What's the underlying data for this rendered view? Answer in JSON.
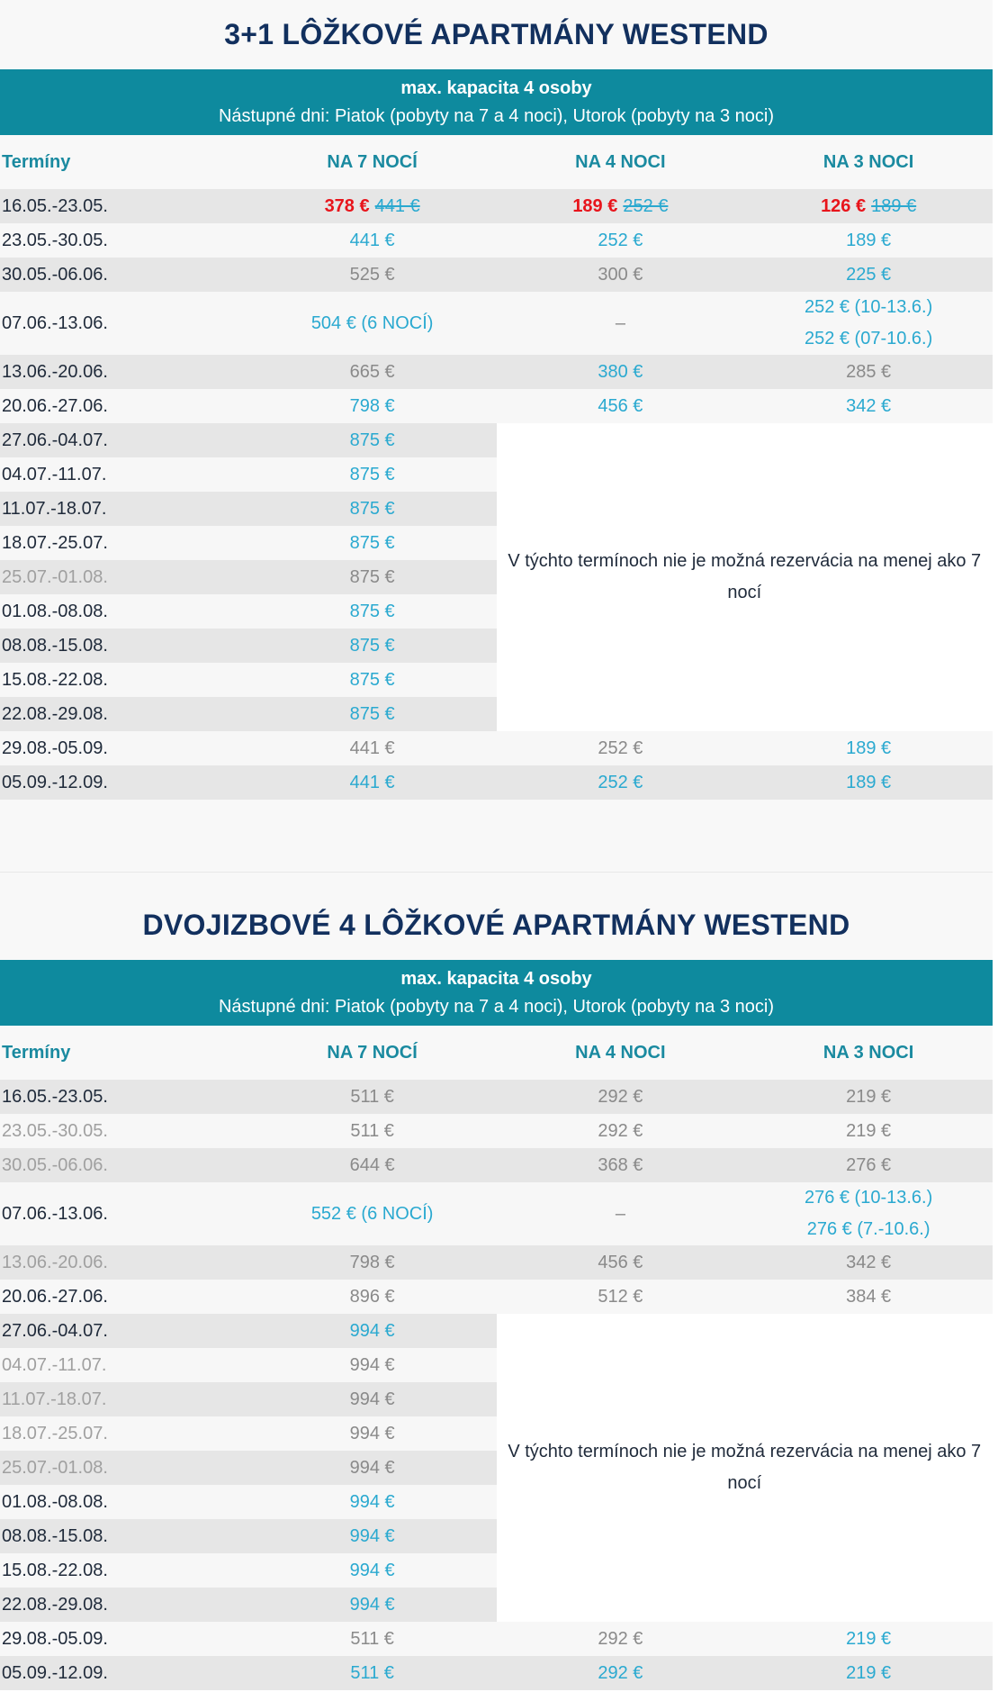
{
  "sections": [
    {
      "title": "3+1 LÔŽKOVÉ APARTMÁNY WESTEND",
      "capacity": "max. kapacita 4 osoby",
      "arrival": "Nástupné dni: Piatok (pobyty na 7 a 4 noci), Utorok (pobyty na 3 noci)",
      "columns": [
        "Termíny",
        "NA 7 NOCÍ",
        "NA 4 NOCI",
        "NA 3 NOCI"
      ],
      "note": "V týchto termínoch nie je možná rezervácia na menej ako 7 nocí",
      "rows": [
        {
          "date": "16.05.-23.05.",
          "date_color": "#1f2a3a",
          "cells": [
            {
              "text": "378 €",
              "old": "441 €",
              "color": "#e8141b",
              "old_color": "#2aa9d0"
            },
            {
              "text": "189 €",
              "old": "252 €",
              "color": "#e8141b",
              "old_color": "#2aa9d0"
            },
            {
              "text": "126 €",
              "old": "189 €",
              "color": "#e8141b",
              "old_color": "#2aa9d0"
            }
          ]
        },
        {
          "date": "23.05.-30.05.",
          "date_color": "#1f2a3a",
          "cells": [
            {
              "text": "441 €",
              "color": "#2aa9d0"
            },
            {
              "text": "252 €",
              "color": "#2aa9d0"
            },
            {
              "text": "189 €",
              "color": "#2aa9d0"
            }
          ]
        },
        {
          "date": "30.05.-06.06.",
          "date_color": "#1f2a3a",
          "cells": [
            {
              "text": "525 €",
              "color": "#8a8a8a"
            },
            {
              "text": "300 €",
              "color": "#8a8a8a"
            },
            {
              "text": "225 €",
              "color": "#2aa9d0"
            }
          ]
        },
        {
          "date": "07.06.-13.06.",
          "date_color": "#1f2a3a",
          "cells": [
            {
              "text": "504 € (6 NOCÍ)",
              "color": "#2aa9d0"
            },
            {
              "text": "–",
              "color": "#8a8a8a"
            },
            {
              "lines": [
                "252 € (10-13.6.)",
                "252 € (07-10.6.)"
              ],
              "color": "#2aa9d0"
            }
          ]
        },
        {
          "date": "13.06.-20.06.",
          "date_color": "#1f2a3a",
          "cells": [
            {
              "text": "665 €",
              "color": "#8a8a8a"
            },
            {
              "text": "380 €",
              "color": "#2aa9d0"
            },
            {
              "text": "285 €",
              "color": "#8a8a8a"
            }
          ]
        },
        {
          "date": "20.06.-27.06.",
          "date_color": "#1f2a3a",
          "cells": [
            {
              "text": "798 €",
              "color": "#2aa9d0"
            },
            {
              "text": "456 €",
              "color": "#2aa9d0"
            },
            {
              "text": "342 €",
              "color": "#2aa9d0"
            }
          ]
        },
        {
          "date": "27.06.-04.07.",
          "date_color": "#1f2a3a",
          "cells": [
            {
              "text": "875 €",
              "color": "#2aa9d0"
            }
          ]
        },
        {
          "date": "04.07.-11.07.",
          "date_color": "#1f2a3a",
          "cells": [
            {
              "text": "875 €",
              "color": "#2aa9d0"
            }
          ]
        },
        {
          "date": "11.07.-18.07.",
          "date_color": "#1f2a3a",
          "cells": [
            {
              "text": "875 €",
              "color": "#2aa9d0"
            }
          ]
        },
        {
          "date": "18.07.-25.07.",
          "date_color": "#1f2a3a",
          "cells": [
            {
              "text": "875 €",
              "color": "#2aa9d0"
            }
          ]
        },
        {
          "date": "25.07.-01.08.",
          "date_color": "#a0a0a0",
          "cells": [
            {
              "text": "875 €",
              "color": "#8a8a8a"
            }
          ]
        },
        {
          "date": "01.08.-08.08.",
          "date_color": "#1f2a3a",
          "cells": [
            {
              "text": "875 €",
              "color": "#2aa9d0"
            }
          ]
        },
        {
          "date": "08.08.-15.08.",
          "date_color": "#1f2a3a",
          "cells": [
            {
              "text": "875 €",
              "color": "#2aa9d0"
            }
          ]
        },
        {
          "date": "15.08.-22.08.",
          "date_color": "#1f2a3a",
          "cells": [
            {
              "text": "875 €",
              "color": "#2aa9d0"
            }
          ]
        },
        {
          "date": "22.08.-29.08.",
          "date_color": "#1f2a3a",
          "cells": [
            {
              "text": "875 €",
              "color": "#2aa9d0"
            }
          ]
        },
        {
          "date": "29.08.-05.09.",
          "date_color": "#1f2a3a",
          "cells": [
            {
              "text": "441 €",
              "color": "#8a8a8a"
            },
            {
              "text": "252 €",
              "color": "#8a8a8a"
            },
            {
              "text": "189 €",
              "color": "#2aa9d0"
            }
          ]
        },
        {
          "date": "05.09.-12.09.",
          "date_color": "#1f2a3a",
          "cells": [
            {
              "text": "441 €",
              "color": "#2aa9d0"
            },
            {
              "text": "252 €",
              "color": "#2aa9d0"
            },
            {
              "text": "189 €",
              "color": "#2aa9d0"
            }
          ]
        }
      ]
    },
    {
      "title": "DVOJIZBOVÉ 4 LÔŽKOVÉ APARTMÁNY WESTEND",
      "capacity": "max. kapacita 4 osoby",
      "arrival": "Nástupné dni: Piatok (pobyty na 7 a 4 noci), Utorok (pobyty na 3 noci)",
      "columns": [
        "Termíny",
        "NA 7 NOCÍ",
        "NA 4 NOCI",
        "NA 3 NOCI"
      ],
      "note": "V týchto termínoch nie je možná rezervácia na menej ako 7 nocí",
      "rows": [
        {
          "date": "16.05.-23.05.",
          "date_color": "#1f2a3a",
          "cells": [
            {
              "text": "511 €",
              "color": "#8a8a8a"
            },
            {
              "text": "292 €",
              "color": "#8a8a8a"
            },
            {
              "text": "219 €",
              "color": "#8a8a8a"
            }
          ]
        },
        {
          "date": "23.05.-30.05.",
          "date_color": "#a0a0a0",
          "cells": [
            {
              "text": "511 €",
              "color": "#8a8a8a"
            },
            {
              "text": "292 €",
              "color": "#8a8a8a"
            },
            {
              "text": "219 €",
              "color": "#8a8a8a"
            }
          ]
        },
        {
          "date": "30.05.-06.06.",
          "date_color": "#a0a0a0",
          "cells": [
            {
              "text": "644 €",
              "color": "#8a8a8a"
            },
            {
              "text": "368 €",
              "color": "#8a8a8a"
            },
            {
              "text": "276 €",
              "color": "#8a8a8a"
            }
          ]
        },
        {
          "date": "07.06.-13.06.",
          "date_color": "#1f2a3a",
          "cells": [
            {
              "text": "552 € (6 NOCÍ)",
              "color": "#2aa9d0"
            },
            {
              "text": "–",
              "color": "#8a8a8a"
            },
            {
              "lines": [
                "276 € (10-13.6.)",
                "276 € (7.-10.6.)"
              ],
              "color": "#2aa9d0"
            }
          ]
        },
        {
          "date": "13.06.-20.06.",
          "date_color": "#a0a0a0",
          "cells": [
            {
              "text": "798 €",
              "color": "#8a8a8a"
            },
            {
              "text": "456 €",
              "color": "#8a8a8a"
            },
            {
              "text": "342 €",
              "color": "#8a8a8a"
            }
          ]
        },
        {
          "date": "20.06.-27.06.",
          "date_color": "#1f2a3a",
          "cells": [
            {
              "text": "896 €",
              "color": "#8a8a8a"
            },
            {
              "text": "512 €",
              "color": "#8a8a8a"
            },
            {
              "text": "384 €",
              "color": "#8a8a8a"
            }
          ]
        },
        {
          "date": "27.06.-04.07.",
          "date_color": "#1f2a3a",
          "cells": [
            {
              "text": "994 €",
              "color": "#2aa9d0"
            }
          ]
        },
        {
          "date": "04.07.-11.07.",
          "date_color": "#a0a0a0",
          "cells": [
            {
              "text": "994 €",
              "color": "#8a8a8a"
            }
          ]
        },
        {
          "date": "11.07.-18.07.",
          "date_color": "#a0a0a0",
          "cells": [
            {
              "text": "994 €",
              "color": "#8a8a8a"
            }
          ]
        },
        {
          "date": "18.07.-25.07.",
          "date_color": "#a0a0a0",
          "cells": [
            {
              "text": "994 €",
              "color": "#8a8a8a"
            }
          ]
        },
        {
          "date": "25.07.-01.08.",
          "date_color": "#a0a0a0",
          "cells": [
            {
              "text": "994 €",
              "color": "#8a8a8a"
            }
          ]
        },
        {
          "date": "01.08.-08.08.",
          "date_color": "#1f2a3a",
          "cells": [
            {
              "text": "994 €",
              "color": "#2aa9d0"
            }
          ]
        },
        {
          "date": "08.08.-15.08.",
          "date_color": "#1f2a3a",
          "cells": [
            {
              "text": "994 €",
              "color": "#2aa9d0"
            }
          ]
        },
        {
          "date": "15.08.-22.08.",
          "date_color": "#1f2a3a",
          "cells": [
            {
              "text": "994 €",
              "color": "#2aa9d0"
            }
          ]
        },
        {
          "date": "22.08.-29.08.",
          "date_color": "#1f2a3a",
          "cells": [
            {
              "text": "994 €",
              "color": "#2aa9d0"
            }
          ]
        },
        {
          "date": "29.08.-05.09.",
          "date_color": "#1f2a3a",
          "cells": [
            {
              "text": "511 €",
              "color": "#8a8a8a"
            },
            {
              "text": "292 €",
              "color": "#8a8a8a"
            },
            {
              "text": "219 €",
              "color": "#2aa9d0"
            }
          ]
        },
        {
          "date": "05.09.-12.09.",
          "date_color": "#1f2a3a",
          "cells": [
            {
              "text": "511 €",
              "color": "#2aa9d0"
            },
            {
              "text": "292 €",
              "color": "#2aa9d0"
            },
            {
              "text": "219 €",
              "color": "#2aa9d0"
            }
          ]
        }
      ]
    }
  ]
}
